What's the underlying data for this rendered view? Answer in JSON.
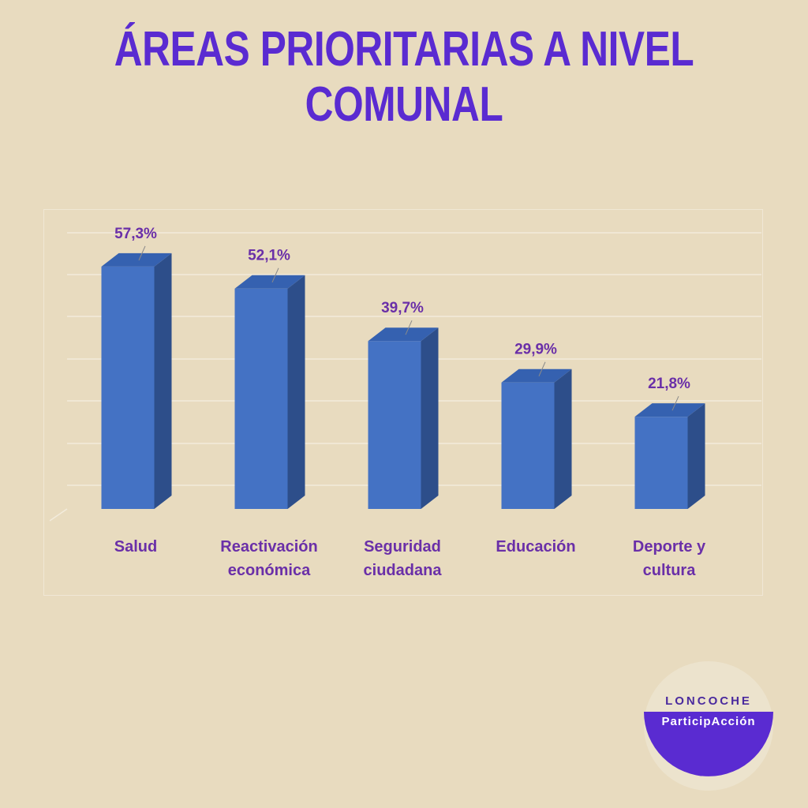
{
  "chart_data": {
    "type": "bar3d",
    "title": "ÁREAS PRIORITARIAS A NIVEL COMUNAL",
    "categories": [
      "Salud",
      "Reactivación económica",
      "Seguridad ciudadana",
      "Educación",
      "Deporte y cultura"
    ],
    "values": [
      57.3,
      52.1,
      39.7,
      29.9,
      21.8
    ],
    "value_labels": [
      "57,3%",
      "52,1%",
      "39,7%",
      "29,9%",
      "21,8%"
    ],
    "color": "#4472c4"
  },
  "logo": {
    "line1": "LONCOCHE",
    "line2": "ParticipAcción"
  }
}
